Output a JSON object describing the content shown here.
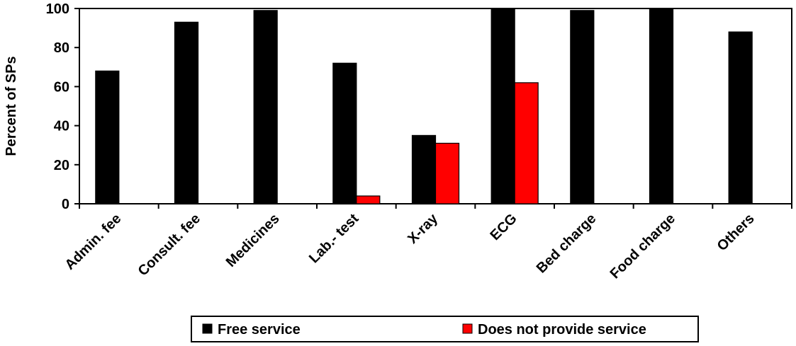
{
  "chart_data": {
    "type": "bar",
    "categories": [
      "Admin. fee",
      "Consult. fee",
      "Medicines",
      "Lab.- test",
      "X-ray",
      "ECG",
      "Bed charge",
      "Food charge",
      "Others"
    ],
    "series": [
      {
        "name": "Free service",
        "color": "#000000",
        "values": [
          68,
          93,
          99,
          72,
          35,
          100,
          99,
          100,
          88
        ]
      },
      {
        "name": "Does not provide service",
        "color": "#ff0000",
        "values": [
          0,
          0,
          0,
          4,
          31,
          62,
          0,
          0,
          0
        ]
      }
    ],
    "xlabel": "",
    "ylabel": "Percent of SPs",
    "ylim": [
      0,
      100
    ],
    "yticks": [
      0,
      20,
      40,
      60,
      80,
      100
    ],
    "grid": false,
    "legend_position": "bottom"
  }
}
